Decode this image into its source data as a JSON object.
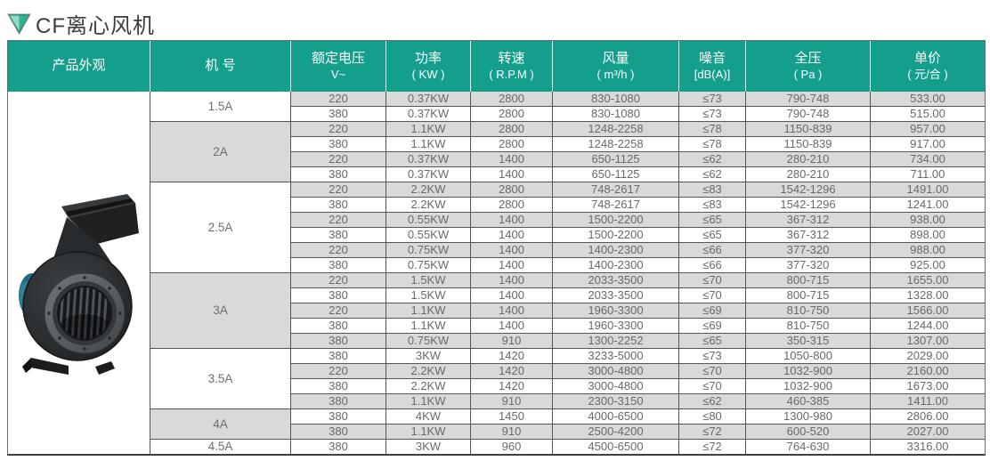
{
  "page": {
    "title": "CF离心风机"
  },
  "icons": {
    "title_bullet": "triangle-down-icon",
    "product_image": "centrifugal-fan-image"
  },
  "colors": {
    "header_bg": "#149e8c",
    "row_alt_bg": "#d9d9d9",
    "data_text": "#696969",
    "motor_teal": "#2a7f92"
  },
  "table": {
    "columns": [
      {
        "title": "产品外观",
        "sub": ""
      },
      {
        "title": "机  号",
        "sub": ""
      },
      {
        "title": "额定电压",
        "sub": "V~"
      },
      {
        "title": "功率",
        "sub": "( KW )"
      },
      {
        "title": "转速",
        "sub": "( R.P.M )"
      },
      {
        "title": "风量",
        "sub": "( m³/h )"
      },
      {
        "title": "噪音",
        "sub": "[dB(A)]"
      },
      {
        "title": "全压",
        "sub": "( Pa )"
      },
      {
        "title": "单价",
        "sub": "( 元/合 )"
      }
    ],
    "field_names": [
      "cell-voltage",
      "cell-power",
      "cell-speed",
      "cell-airflow",
      "cell-noise",
      "cell-pressure",
      "cell-price"
    ],
    "groups": [
      {
        "model": "1.5A",
        "rows": [
          [
            "220",
            "0.37KW",
            "2800",
            "830-1080",
            "≤73",
            "790-748",
            "533.00"
          ],
          [
            "380",
            "0.37KW",
            "2800",
            "830-1080",
            "≤73",
            "790-748",
            "515.00"
          ]
        ]
      },
      {
        "model": "2A",
        "rows": [
          [
            "220",
            "1.1KW",
            "2800",
            "1248-2258",
            "≤78",
            "1150-839",
            "957.00"
          ],
          [
            "380",
            "1.1KW",
            "2800",
            "1248-2258",
            "≤78",
            "1150-839",
            "917.00"
          ],
          [
            "220",
            "0.37KW",
            "1400",
            "650-1125",
            "≤62",
            "280-210",
            "734.00"
          ],
          [
            "380",
            "0.37KW",
            "1400",
            "650-1125",
            "≤62",
            "280-210",
            "711.00"
          ]
        ]
      },
      {
        "model": "2.5A",
        "rows": [
          [
            "220",
            "2.2KW",
            "2800",
            "748-2617",
            "≤83",
            "1542-1296",
            "1491.00"
          ],
          [
            "380",
            "2.2KW",
            "2800",
            "748-2617",
            "≤83",
            "1542-1296",
            "1241.00"
          ],
          [
            "220",
            "0.55KW",
            "1400",
            "1500-2200",
            "≤65",
            "367-312",
            "938.00"
          ],
          [
            "380",
            "0.55KW",
            "1400",
            "1500-2200",
            "≤65",
            "367-312",
            "898.00"
          ],
          [
            "220",
            "0.75KW",
            "1400",
            "1400-2300",
            "≤66",
            "377-320",
            "988.00"
          ],
          [
            "380",
            "0.75KW",
            "1400",
            "1400-2300",
            "≤66",
            "377-320",
            "925.00"
          ]
        ]
      },
      {
        "model": "3A",
        "rows": [
          [
            "220",
            "1.5KW",
            "1400",
            "2033-3500",
            "≤70",
            "800-715",
            "1655.00"
          ],
          [
            "380",
            "1.5KW",
            "1400",
            "2033-3500",
            "≤70",
            "800-715",
            "1328.00"
          ],
          [
            "220",
            "1.1KW",
            "1400",
            "1960-3300",
            "≤69",
            "810-750",
            "1566.00"
          ],
          [
            "380",
            "1.1KW",
            "1400",
            "1960-3300",
            "≤69",
            "810-750",
            "1244.00"
          ],
          [
            "380",
            "0.75KW",
            "910",
            "1300-2252",
            "≤65",
            "350-315",
            "1307.00"
          ]
        ]
      },
      {
        "model": "3.5A",
        "rows": [
          [
            "380",
            "3KW",
            "1420",
            "3233-5000",
            "≤73",
            "1050-800",
            "2029.00"
          ],
          [
            "220",
            "2.2KW",
            "1420",
            "3000-4800",
            "≤70",
            "1032-900",
            "2160.00"
          ],
          [
            "380",
            "2.2KW",
            "1420",
            "3000-4800",
            "≤70",
            "1032-900",
            "1673.00"
          ],
          [
            "380",
            "1.1KW",
            "910",
            "2300-3150",
            "≤62",
            "460-385",
            "1411.00"
          ]
        ]
      },
      {
        "model": "4A",
        "rows": [
          [
            "380",
            "4KW",
            "1450",
            "4000-6500",
            "≤80",
            "1300-980",
            "2806.00"
          ],
          [
            "380",
            "1.1KW",
            "910",
            "2500-4200",
            "≤72",
            "600-520",
            "2027.00"
          ]
        ]
      },
      {
        "model": "4.5A",
        "rows": [
          [
            "380",
            "3KW",
            "960",
            "4500-6500",
            "≤72",
            "764-630",
            "3316.00"
          ]
        ]
      }
    ]
  }
}
